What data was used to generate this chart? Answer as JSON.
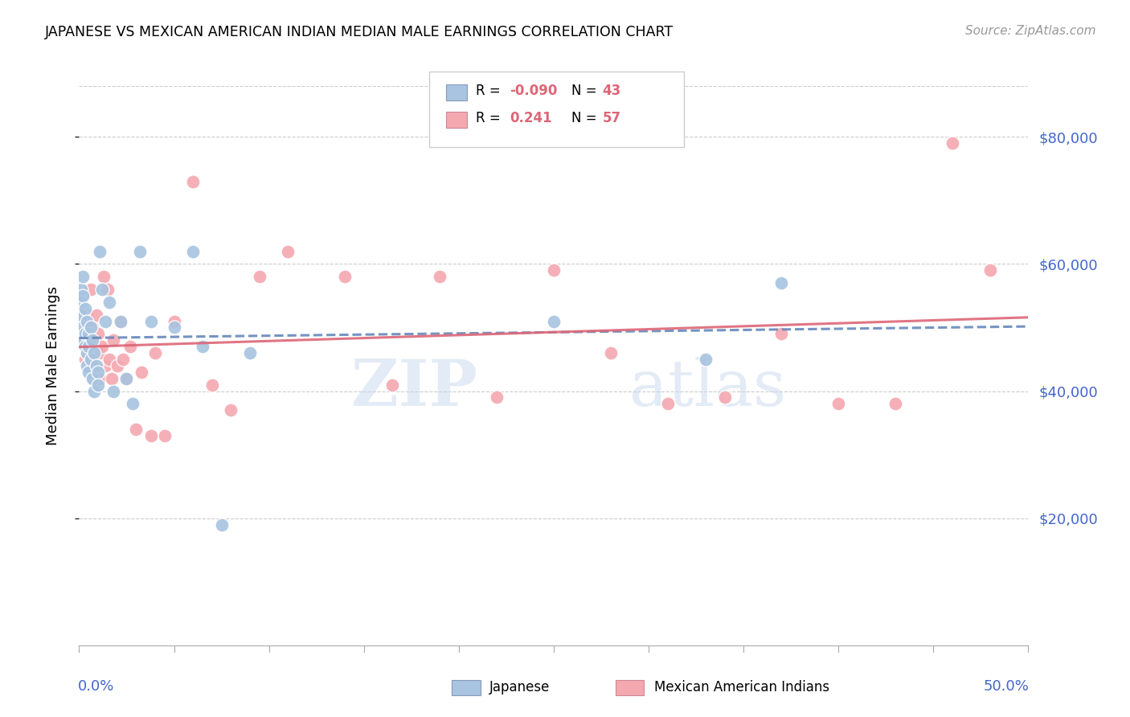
{
  "title": "JAPANESE VS MEXICAN AMERICAN INDIAN MEDIAN MALE EARNINGS CORRELATION CHART",
  "source": "Source: ZipAtlas.com",
  "ylabel": "Median Male Earnings",
  "xlim": [
    0,
    0.5
  ],
  "ylim": [
    0,
    88000
  ],
  "watermark_zip": "ZIP",
  "watermark_atlas": "atlas",
  "blue_color": "#A8C4E0",
  "pink_color": "#F4A8B0",
  "blue_line_color": "#6688BB",
  "pink_line_color": "#DD6677",
  "axis_color": "#4466CC",
  "grid_color": "#DDDDDD",
  "legend_r1_label": "R = ",
  "legend_r1_val": "-0.090",
  "legend_n1_label": "N = ",
  "legend_n1_val": "43",
  "legend_r2_label": "R =  ",
  "legend_r2_val": "0.241",
  "legend_n2_label": "N = ",
  "legend_n2_val": "57",
  "japanese_x": [
    0.001,
    0.001,
    0.001,
    0.002,
    0.002,
    0.002,
    0.002,
    0.003,
    0.003,
    0.003,
    0.004,
    0.004,
    0.004,
    0.005,
    0.005,
    0.005,
    0.006,
    0.006,
    0.007,
    0.007,
    0.008,
    0.008,
    0.009,
    0.01,
    0.01,
    0.011,
    0.012,
    0.014,
    0.016,
    0.018,
    0.022,
    0.025,
    0.028,
    0.032,
    0.038,
    0.05,
    0.06,
    0.065,
    0.075,
    0.09,
    0.25,
    0.33,
    0.37
  ],
  "japanese_y": [
    56000,
    54000,
    52000,
    58000,
    55000,
    50000,
    48000,
    53000,
    49000,
    47000,
    51000,
    46000,
    44000,
    49000,
    47000,
    43000,
    50000,
    45000,
    48000,
    42000,
    46000,
    40000,
    44000,
    43000,
    41000,
    62000,
    56000,
    51000,
    54000,
    40000,
    51000,
    42000,
    38000,
    62000,
    51000,
    50000,
    62000,
    47000,
    19000,
    46000,
    51000,
    45000,
    57000
  ],
  "mexican_x": [
    0.001,
    0.002,
    0.002,
    0.003,
    0.003,
    0.004,
    0.004,
    0.005,
    0.005,
    0.006,
    0.006,
    0.007,
    0.007,
    0.008,
    0.008,
    0.009,
    0.009,
    0.01,
    0.01,
    0.011,
    0.011,
    0.012,
    0.013,
    0.014,
    0.015,
    0.016,
    0.017,
    0.018,
    0.02,
    0.022,
    0.023,
    0.025,
    0.027,
    0.03,
    0.033,
    0.038,
    0.04,
    0.045,
    0.05,
    0.06,
    0.07,
    0.08,
    0.095,
    0.11,
    0.14,
    0.165,
    0.19,
    0.22,
    0.25,
    0.28,
    0.31,
    0.34,
    0.37,
    0.4,
    0.43,
    0.46,
    0.48
  ],
  "mexican_y": [
    52000,
    55000,
    49000,
    48000,
    45000,
    52000,
    46000,
    50000,
    44000,
    56000,
    48000,
    44000,
    50000,
    42000,
    46000,
    52000,
    44000,
    49000,
    42000,
    46000,
    42000,
    47000,
    58000,
    44000,
    56000,
    45000,
    42000,
    48000,
    44000,
    51000,
    45000,
    42000,
    47000,
    34000,
    43000,
    33000,
    46000,
    33000,
    51000,
    73000,
    41000,
    37000,
    58000,
    62000,
    58000,
    41000,
    58000,
    39000,
    59000,
    46000,
    38000,
    39000,
    49000,
    38000,
    38000,
    79000,
    59000
  ]
}
